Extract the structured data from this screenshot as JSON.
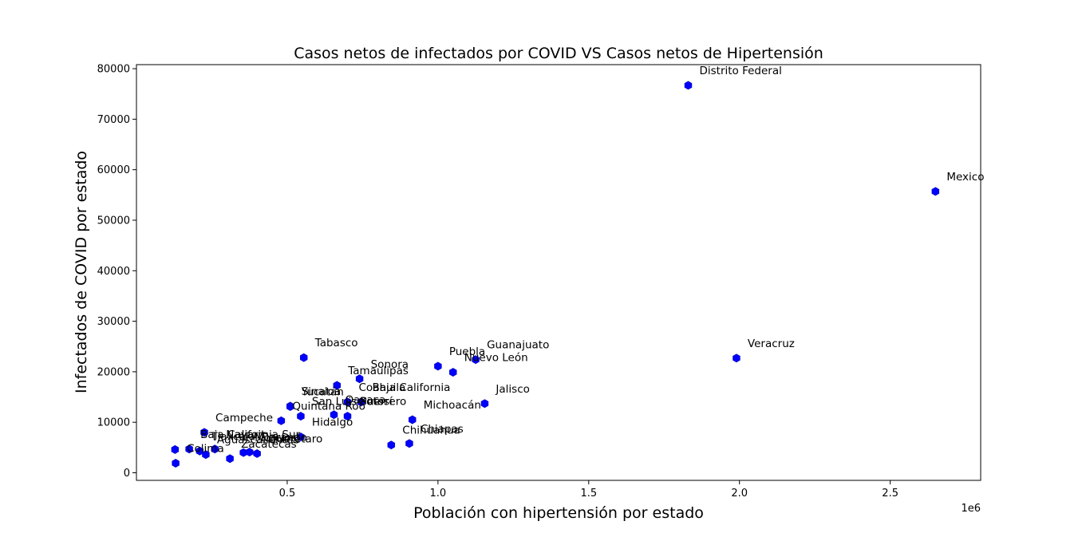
{
  "chart_data": {
    "type": "scatter",
    "title": "Casos netos de infectados por COVID VS Casos netos de Hipertensión",
    "xlabel": "Población con hipertensión por estado",
    "ylabel": "Infectados de COVID por estado",
    "x_offset_label": "1e6",
    "xlim": [
      0,
      2.8
    ],
    "ylim": [
      -1500,
      80800
    ],
    "xticks": [
      0.5,
      1.0,
      1.5,
      2.0,
      2.5
    ],
    "xtick_labels": [
      "0.5",
      "1.0",
      "1.5",
      "2.0",
      "2.5"
    ],
    "yticks": [
      0,
      10000,
      20000,
      30000,
      40000,
      50000,
      60000,
      70000,
      80000
    ],
    "ytick_labels": [
      "0",
      "10000",
      "20000",
      "30000",
      "40000",
      "50000",
      "60000",
      "70000",
      "80000"
    ],
    "marker": "hexagon",
    "marker_color": "#0000ff",
    "grid": false,
    "points": [
      {
        "label": "Distrito Federal",
        "x": 1.83,
        "y": 76700
      },
      {
        "label": "Mexico",
        "x": 2.65,
        "y": 55700
      },
      {
        "label": "Veracruz",
        "x": 1.99,
        "y": 22700
      },
      {
        "label": "Guanajuato",
        "x": 1.125,
        "y": 22400
      },
      {
        "label": "Nuevo León",
        "x": 1.05,
        "y": 19900
      },
      {
        "label": "Puebla",
        "x": 1.0,
        "y": 21100
      },
      {
        "label": "Jalisco",
        "x": 1.155,
        "y": 13700
      },
      {
        "label": "Michoacán",
        "x": 0.915,
        "y": 10500
      },
      {
        "label": "Chiapas",
        "x": 0.905,
        "y": 5800
      },
      {
        "label": "Chihuahua",
        "x": 0.845,
        "y": 5500
      },
      {
        "label": "Tabasco",
        "x": 0.555,
        "y": 22800
      },
      {
        "label": "Sonora",
        "x": 0.74,
        "y": 18600
      },
      {
        "label": "Tamaulipas",
        "x": 0.665,
        "y": 17300
      },
      {
        "label": "Baja California",
        "x": 0.745,
        "y": 14000
      },
      {
        "label": "Coahuila",
        "x": 0.7,
        "y": 14000
      },
      {
        "label": "Guerrero",
        "x": 0.7,
        "y": 11200
      },
      {
        "label": "Oaxaca",
        "x": 0.655,
        "y": 11500
      },
      {
        "label": "San Luis Potosí",
        "x": 0.545,
        "y": 11200
      },
      {
        "label": "Sinaloa",
        "x": 0.51,
        "y": 13200
      },
      {
        "label": "Yucatán",
        "x": 0.51,
        "y": 13100
      },
      {
        "label": "Quintana Roo",
        "x": 0.48,
        "y": 10300
      },
      {
        "label": "Hidalgo",
        "x": 0.545,
        "y": 7100
      },
      {
        "label": "Querétaro",
        "x": 0.4,
        "y": 3800
      },
      {
        "label": "Morelos",
        "x": 0.355,
        "y": 4000
      },
      {
        "label": "Durango",
        "x": 0.375,
        "y": 4100
      },
      {
        "label": "Zacatecas",
        "x": 0.31,
        "y": 2800
      },
      {
        "label": "Nayarit",
        "x": 0.26,
        "y": 4700
      },
      {
        "label": "Aguascalientes",
        "x": 0.23,
        "y": 3600
      },
      {
        "label": "Tlaxcala",
        "x": 0.21,
        "y": 4300
      },
      {
        "label": "Campeche",
        "x": 0.225,
        "y": 8000
      },
      {
        "label": "Baja California Sur",
        "x": 0.175,
        "y": 4700
      },
      {
        "label": "Colima",
        "x": 0.13,
        "y": 1900
      },
      {
        "label": "",
        "x": 0.128,
        "y": 4600
      }
    ]
  }
}
